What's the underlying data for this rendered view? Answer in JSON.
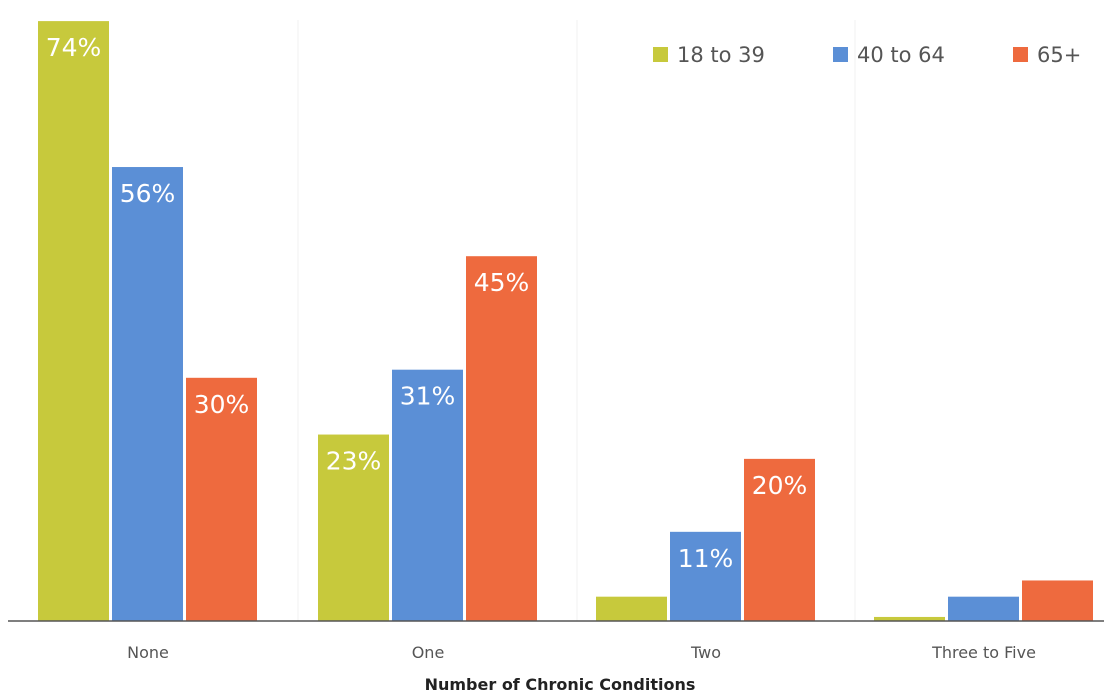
{
  "chart_data": {
    "type": "bar",
    "categories": [
      "None",
      "One",
      "Two",
      "Three to Five"
    ],
    "series": [
      {
        "name": "18 to 39",
        "color": "#c7c93c",
        "values": [
          74,
          23,
          3,
          0.5
        ],
        "labels": [
          "74%",
          "23%",
          "3%",
          "<1%"
        ]
      },
      {
        "name": "40 to 64",
        "color": "#5b8fd6",
        "values": [
          56,
          31,
          11,
          3
        ],
        "labels": [
          "56%",
          "31%",
          "11%",
          "3%"
        ]
      },
      {
        "name": "65+",
        "color": "#ee6a3e",
        "values": [
          30,
          45,
          20,
          5
        ],
        "labels": [
          "30%",
          "45%",
          "20%",
          "5%"
        ]
      }
    ],
    "xlabel": "Number of Chronic Conditions",
    "ylim": [
      0,
      75
    ],
    "grid": false,
    "legend": "top-right"
  }
}
